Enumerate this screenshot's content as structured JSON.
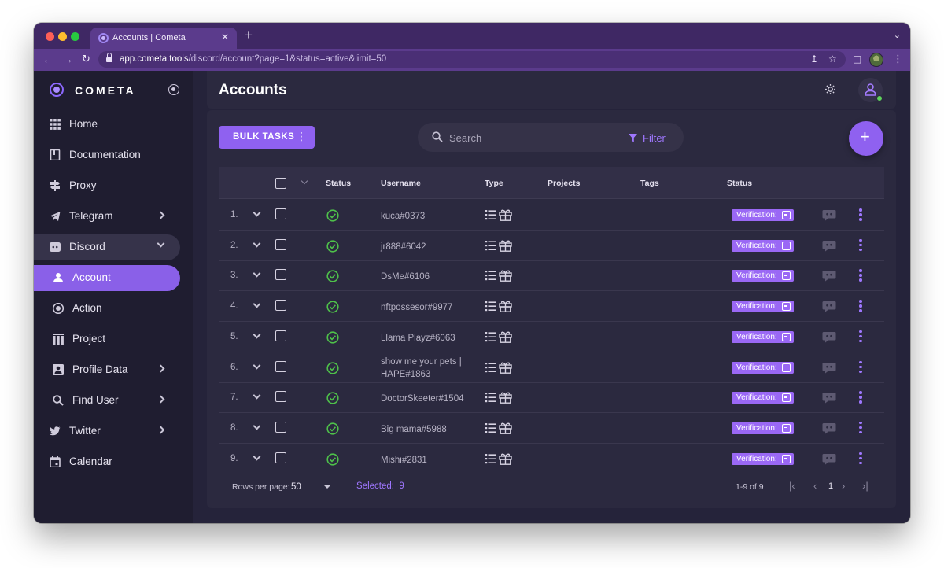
{
  "browser": {
    "tab_title": "Accounts | Cometa",
    "tab_close": "✕",
    "new_tab": "+",
    "url_host": "app.cometa.tools",
    "url_path": "/discord/account?page=1&status=active&limit=50"
  },
  "sidebar": {
    "logo": "COMETA",
    "items": [
      {
        "label": "Home",
        "icon": "grid-icon"
      },
      {
        "label": "Documentation",
        "icon": "book-icon"
      },
      {
        "label": "Proxy",
        "icon": "signpost-icon"
      },
      {
        "label": "Telegram",
        "icon": "telegram-icon"
      },
      {
        "label": "Discord",
        "icon": "discord-icon"
      },
      {
        "label": "Account",
        "icon": "user-icon"
      },
      {
        "label": "Action",
        "icon": "action-icon"
      },
      {
        "label": "Project",
        "icon": "project-icon"
      },
      {
        "label": "Profile Data",
        "icon": "profile-icon"
      },
      {
        "label": "Find User",
        "icon": "search-icon"
      },
      {
        "label": "Twitter",
        "icon": "twitter-icon"
      },
      {
        "label": "Calendar",
        "icon": "calendar-icon"
      }
    ]
  },
  "header": {
    "title": "Accounts"
  },
  "toolbar": {
    "bulk_label": "BULK TASKS",
    "search_placeholder": "Search",
    "filter_label": "Filter",
    "add_label": "+"
  },
  "table": {
    "columns": [
      "Status",
      "Username",
      "Type",
      "Projects",
      "Tags",
      "Status"
    ],
    "badge_label": "Verification:",
    "rows": [
      {
        "num": "1.",
        "username": "kuca#0373"
      },
      {
        "num": "2.",
        "username": "jr888#6042"
      },
      {
        "num": "3.",
        "username": "DsMe#6106"
      },
      {
        "num": "4.",
        "username": "nftpossesor#9977"
      },
      {
        "num": "5.",
        "username": "Llama Playz#6063"
      },
      {
        "num": "6.",
        "username": "show me your pets | HAPE#1863"
      },
      {
        "num": "7.",
        "username": "DoctorSkeeter#1504"
      },
      {
        "num": "8.",
        "username": "Big mama#5988"
      },
      {
        "num": "9.",
        "username": "Mishi#2831"
      }
    ]
  },
  "footer": {
    "rows_per_page_label": "Rows per page:",
    "rows_per_page_value": "50",
    "selected_label": "Selected:",
    "selected_count": "9",
    "range": "1-9 of 9",
    "page": "1"
  },
  "colors": {
    "accent": "#8f61f0",
    "tab_bar": "#3f2864",
    "sidebar_bg": "#1f1d30",
    "main_bg": "#25233a",
    "success": "#4ec04a"
  }
}
